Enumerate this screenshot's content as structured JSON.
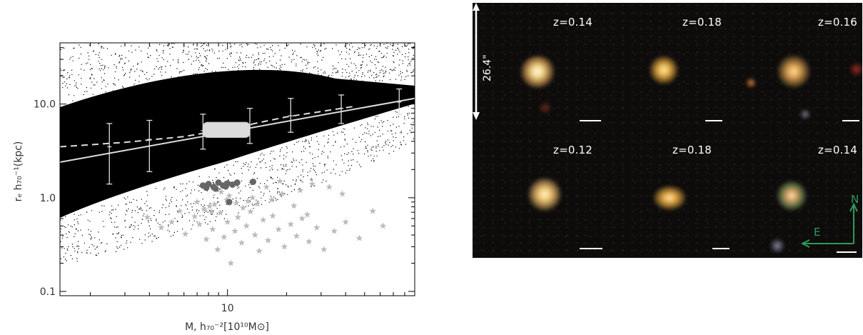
{
  "chart_data": {
    "type": "scatter",
    "xlabel": "M, h₇₀⁻²[10¹⁰M⊙]",
    "ylabel": "rₑ h₇₀⁻¹(kpc)",
    "x_scale": "log",
    "y_scale": "log",
    "xlim": [
      1.4,
      90
    ],
    "ylim": [
      0.09,
      45
    ],
    "xticks": [
      {
        "value": 10,
        "label": "10"
      }
    ],
    "yticks": [
      {
        "value": 0.1,
        "label": "0.1"
      },
      {
        "value": 1.0,
        "label": "1.0"
      },
      {
        "value": 10.0,
        "label": "10.0"
      }
    ],
    "series": [
      {
        "type": "errorbar",
        "x": [
          2.5,
          4.0,
          7.5,
          13.0,
          21.0,
          38.0,
          75.0
        ],
        "y": [
          3.5,
          4.2,
          5.2,
          6.0,
          7.5,
          9.0,
          10.5
        ],
        "ylo": [
          1.4,
          1.9,
          3.3,
          3.8,
          5.0,
          6.2,
          7.8
        ],
        "yhi": [
          6.2,
          6.7,
          7.8,
          9.0,
          11.5,
          12.5,
          14.5
        ],
        "color": "#dddddd"
      },
      {
        "type": "line",
        "style": "solid",
        "x": [
          1.4,
          90
        ],
        "y": [
          2.4,
          11.5
        ],
        "color": "#dddddd"
      },
      {
        "type": "line",
        "style": "dashed",
        "x": [
          1.4,
          3.0,
          6.0,
          10.0,
          20.0,
          45.0
        ],
        "y": [
          3.5,
          3.9,
          4.5,
          5.4,
          7.3,
          9.5
        ],
        "color": "#dddddd"
      },
      {
        "type": "scatter-stars",
        "x": [
          3.9,
          4.6,
          5.2,
          5.7,
          6.1,
          6.8,
          7.2,
          7.8,
          8.1,
          8.4,
          8.9,
          9.2,
          9.6,
          10.0,
          10.4,
          10.9,
          11.3,
          11.8,
          12.5,
          13.1,
          13.8,
          14.5,
          15.2,
          16.1,
          17.0,
          18.2,
          19.5,
          21.0,
          22.5,
          24.0,
          26.0,
          28.5,
          31.0,
          35.0,
          40.0,
          47.0,
          55.0,
          62.0,
          7.0,
          8.6,
          9.9,
          11.1,
          12.7,
          14.2,
          16.8,
          19.0,
          23.5,
          27.0,
          33.0,
          38.5,
          9.3,
          10.2,
          7.6,
          8.3,
          12.0,
          13.4,
          15.8,
          18.5,
          21.8,
          25.5
        ],
        "y": [
          0.62,
          0.48,
          0.55,
          0.72,
          0.41,
          0.63,
          0.52,
          0.36,
          0.81,
          0.46,
          0.28,
          0.69,
          0.38,
          0.55,
          0.2,
          0.44,
          0.62,
          0.33,
          0.5,
          0.71,
          0.4,
          0.27,
          0.58,
          0.35,
          0.64,
          0.46,
          0.3,
          0.52,
          0.39,
          0.6,
          0.34,
          0.48,
          0.28,
          0.44,
          0.55,
          0.37,
          0.72,
          0.5,
          0.9,
          0.85,
          0.95,
          0.88,
          0.92,
          0.86,
          0.95,
          1.1,
          1.2,
          1.4,
          1.3,
          1.1,
          1.15,
          1.05,
          0.75,
          0.7,
          0.78,
          1.0,
          1.3,
          1.5,
          0.82,
          0.66
        ],
        "color": "#bbbbbb"
      },
      {
        "type": "scatter-dark",
        "x": [
          7.5,
          8.0,
          8.5,
          9.0,
          9.5,
          10.0,
          7.8,
          8.7,
          9.8,
          10.6,
          11.2,
          13.5,
          10.2
        ],
        "y": [
          1.35,
          1.4,
          1.3,
          1.45,
          1.35,
          1.42,
          1.28,
          1.25,
          1.32,
          1.38,
          1.45,
          1.48,
          0.9
        ],
        "color": "#666666"
      }
    ]
  },
  "mosaic": {
    "size_label": "26.4\"",
    "compass": {
      "north": "N",
      "east": "E"
    },
    "cells": [
      {
        "z": "z=0.14"
      },
      {
        "z": "z=0.18"
      },
      {
        "z": "z=0.16"
      },
      {
        "z": "z=0.12"
      },
      {
        "z": "z=0.18"
      },
      {
        "z": "z=0.14"
      }
    ]
  }
}
